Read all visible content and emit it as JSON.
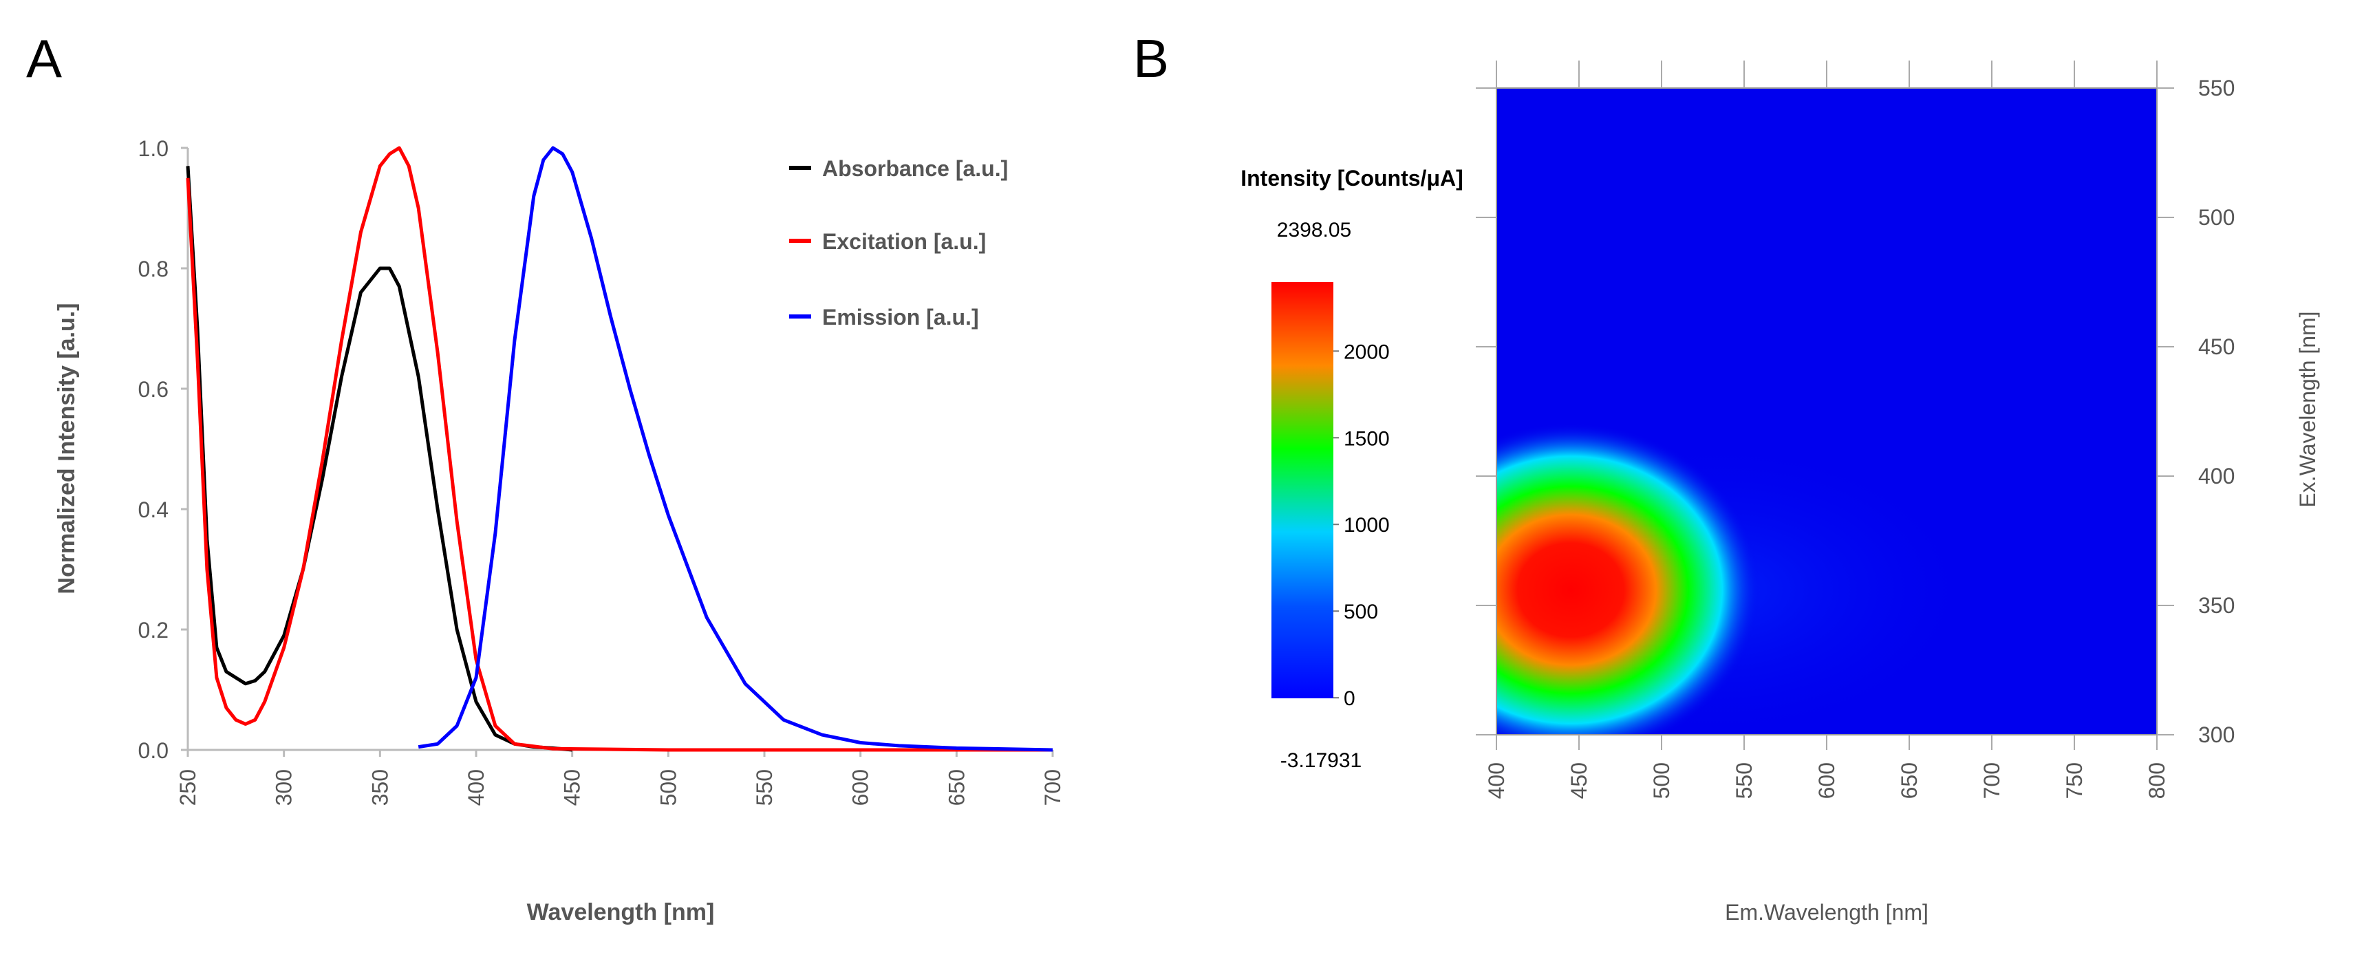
{
  "panels": {
    "a_label": "A",
    "b_label": "B"
  },
  "chart_data": [
    {
      "id": "A",
      "type": "line",
      "title": "",
      "xlabel": "Wavelength [nm]",
      "ylabel": "Normalized Intensity [a.u.]",
      "xlim": [
        250,
        700
      ],
      "ylim": [
        0.0,
        1.0
      ],
      "xticks": [
        250,
        300,
        350,
        400,
        450,
        500,
        550,
        600,
        650,
        700
      ],
      "yticks": [
        "0.0",
        "0.2",
        "0.4",
        "0.6",
        "0.8",
        "1.0"
      ],
      "grid": false,
      "legend_position": "top-right",
      "series": [
        {
          "name": "Absorbance [a.u.]",
          "color": "#000000",
          "x": [
            250,
            255,
            260,
            265,
            270,
            275,
            280,
            285,
            290,
            300,
            310,
            320,
            330,
            340,
            350,
            355,
            360,
            370,
            380,
            390,
            400,
            410,
            420,
            430,
            440,
            450
          ],
          "y": [
            0.97,
            0.7,
            0.35,
            0.17,
            0.13,
            0.12,
            0.11,
            0.115,
            0.13,
            0.19,
            0.3,
            0.45,
            0.62,
            0.76,
            0.8,
            0.8,
            0.77,
            0.62,
            0.4,
            0.2,
            0.08,
            0.025,
            0.01,
            0.005,
            0.003,
            0.0
          ]
        },
        {
          "name": "Excitation [a.u.]",
          "color": "#ff0000",
          "x": [
            250,
            255,
            260,
            265,
            270,
            275,
            280,
            285,
            290,
            300,
            310,
            320,
            330,
            340,
            350,
            355,
            360,
            365,
            370,
            380,
            390,
            400,
            410,
            420,
            440,
            500,
            600,
            700
          ],
          "y": [
            0.95,
            0.65,
            0.3,
            0.12,
            0.07,
            0.05,
            0.043,
            0.05,
            0.08,
            0.17,
            0.3,
            0.48,
            0.68,
            0.86,
            0.97,
            0.99,
            1.0,
            0.97,
            0.9,
            0.66,
            0.38,
            0.15,
            0.04,
            0.01,
            0.002,
            0.0,
            0.0,
            0.0
          ]
        },
        {
          "name": "Emission [a.u.]",
          "color": "#0000ff",
          "x": [
            370,
            380,
            390,
            400,
            410,
            420,
            430,
            435,
            440,
            445,
            450,
            460,
            470,
            480,
            490,
            500,
            520,
            540,
            560,
            580,
            600,
            620,
            650,
            700
          ],
          "y": [
            0.005,
            0.01,
            0.04,
            0.12,
            0.36,
            0.68,
            0.92,
            0.98,
            1.0,
            0.99,
            0.96,
            0.85,
            0.72,
            0.6,
            0.49,
            0.39,
            0.22,
            0.11,
            0.05,
            0.025,
            0.012,
            0.007,
            0.003,
            0.0
          ]
        }
      ]
    },
    {
      "id": "B",
      "type": "heatmap",
      "title": "",
      "xlabel": "Em.Wavelength [nm]",
      "ylabel": "Ex.Wavelength [nm]",
      "xlim": [
        400,
        800
      ],
      "ylim": [
        300,
        550
      ],
      "xticks": [
        400,
        450,
        500,
        550,
        600,
        650,
        700,
        750,
        800
      ],
      "yticks": [
        300,
        350,
        400,
        450,
        500,
        550
      ],
      "colorbar": {
        "title": "Intensity [Counts/μA]",
        "max_label": "2398.05",
        "min_label": "-3.17931",
        "ticks": [
          0,
          500,
          1000,
          1500,
          2000
        ],
        "range": [
          -3.17931,
          2398.05
        ],
        "colors": [
          "#0000ff",
          "#00c8ff",
          "#00ff00",
          "#ff8800",
          "#ff0000"
        ]
      },
      "peak": {
        "em_nm": 445,
        "ex_nm": 356,
        "intensity": 2398.05,
        "em_halfwidth_nm": 45,
        "ex_halfwidth_nm": 38
      },
      "background_color": "#0000ee"
    }
  ]
}
